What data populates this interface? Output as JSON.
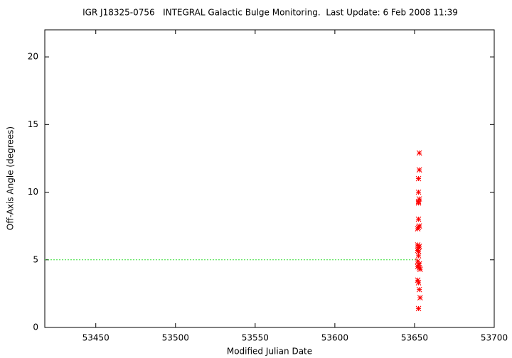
{
  "chart_data": {
    "type": "scatter",
    "title": "IGR J18325-0756   INTEGRAL Galactic Bulge Monitoring.  Last Update: 6 Feb 2008 11:39",
    "x_label": "Modified Julian Date",
    "y_label": "Off-Axis Angle (degrees)",
    "xlim": [
      53418,
      53700
    ],
    "ylim": [
      0,
      22
    ],
    "xticks": [
      53450,
      53500,
      53550,
      53600,
      53650,
      53700
    ],
    "yticks": [
      0,
      5,
      10,
      15,
      20
    ],
    "reference_line": {
      "y": 5,
      "x": [
        53418,
        53652
      ],
      "color": "#33dd33"
    },
    "series": [
      {
        "color": "#ff0000",
        "x": [
          53653,
          53653,
          53652.5,
          53652.5,
          53653,
          53652.5,
          53652.5,
          53652.5,
          53653,
          53652.5,
          53652,
          53652,
          53653,
          53652.5,
          53652,
          53652.5,
          53652.5,
          53652,
          53653,
          53652.5,
          53652,
          53653,
          53653.5,
          53652,
          53652.5,
          53653,
          53653.5,
          53652.5
        ],
        "values": [
          12.9,
          11.65,
          11.0,
          10.0,
          9.5,
          9.3,
          9.2,
          8.0,
          7.5,
          7.4,
          7.3,
          6.1,
          6.0,
          5.9,
          5.7,
          5.6,
          5.3,
          4.9,
          4.7,
          4.6,
          4.5,
          4.4,
          4.3,
          3.5,
          3.3,
          2.8,
          2.2,
          1.4
        ]
      }
    ]
  }
}
